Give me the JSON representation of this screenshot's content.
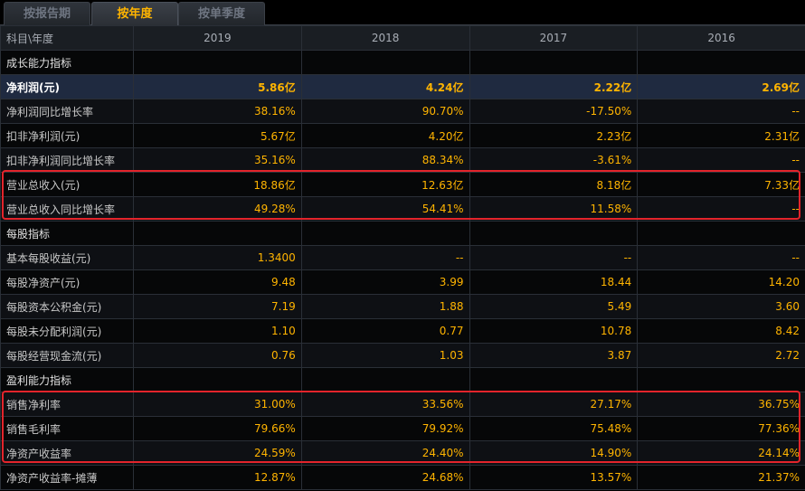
{
  "tabs": [
    {
      "label": "按报告期",
      "active": false
    },
    {
      "label": "按年度",
      "active": true
    },
    {
      "label": "按单季度",
      "active": false
    }
  ],
  "table": {
    "header": {
      "label": "科目\\年度",
      "years": [
        "2019",
        "2018",
        "2017",
        "2016"
      ]
    },
    "rows": [
      {
        "type": "section",
        "label": "成长能力指标",
        "values": [
          "",
          "",
          "",
          ""
        ]
      },
      {
        "type": "hl",
        "label": "净利润(元)",
        "values": [
          "5.86亿",
          "4.24亿",
          "2.22亿",
          "2.69亿"
        ]
      },
      {
        "type": "zebra",
        "label": "净利润同比增长率",
        "values": [
          "38.16%",
          "90.70%",
          "-17.50%",
          "--"
        ]
      },
      {
        "type": "plain",
        "label": "扣非净利润(元)",
        "values": [
          "5.67亿",
          "4.20亿",
          "2.23亿",
          "2.31亿"
        ]
      },
      {
        "type": "zebra",
        "label": "扣非净利润同比增长率",
        "values": [
          "35.16%",
          "88.34%",
          "-3.61%",
          "--"
        ]
      },
      {
        "type": "plain",
        "label": "营业总收入(元)",
        "values": [
          "18.86亿",
          "12.63亿",
          "8.18亿",
          "7.33亿"
        ]
      },
      {
        "type": "zebra",
        "label": "营业总收入同比增长率",
        "values": [
          "49.28%",
          "54.41%",
          "11.58%",
          "--"
        ]
      },
      {
        "type": "section",
        "label": "每股指标",
        "values": [
          "",
          "",
          "",
          ""
        ]
      },
      {
        "type": "zebra",
        "label": "基本每股收益(元)",
        "values": [
          "1.3400",
          "--",
          "--",
          "--"
        ]
      },
      {
        "type": "plain",
        "label": "每股净资产(元)",
        "values": [
          "9.48",
          "3.99",
          "18.44",
          "14.20"
        ]
      },
      {
        "type": "zebra",
        "label": "每股资本公积金(元)",
        "values": [
          "7.19",
          "1.88",
          "5.49",
          "3.60"
        ]
      },
      {
        "type": "plain",
        "label": "每股未分配利润(元)",
        "values": [
          "1.10",
          "0.77",
          "10.78",
          "8.42"
        ]
      },
      {
        "type": "zebra",
        "label": "每股经营现金流(元)",
        "values": [
          "0.76",
          "1.03",
          "3.87",
          "2.72"
        ]
      },
      {
        "type": "section",
        "label": "盈利能力指标",
        "values": [
          "",
          "",
          "",
          ""
        ]
      },
      {
        "type": "zebra",
        "label": "销售净利率",
        "values": [
          "31.00%",
          "33.56%",
          "27.17%",
          "36.75%"
        ]
      },
      {
        "type": "plain",
        "label": "销售毛利率",
        "values": [
          "79.66%",
          "79.92%",
          "75.48%",
          "77.36%"
        ]
      },
      {
        "type": "zebra",
        "label": "净资产收益率",
        "values": [
          "24.59%",
          "24.40%",
          "14.90%",
          "24.14%"
        ]
      },
      {
        "type": "plain",
        "label": "净资产收益率-摊薄",
        "values": [
          "12.87%",
          "24.68%",
          "13.57%",
          "21.37%"
        ]
      }
    ]
  },
  "colors": {
    "value": "#ffb400",
    "highlight_box": "#e3242b",
    "active_tab": "#ffb400"
  }
}
